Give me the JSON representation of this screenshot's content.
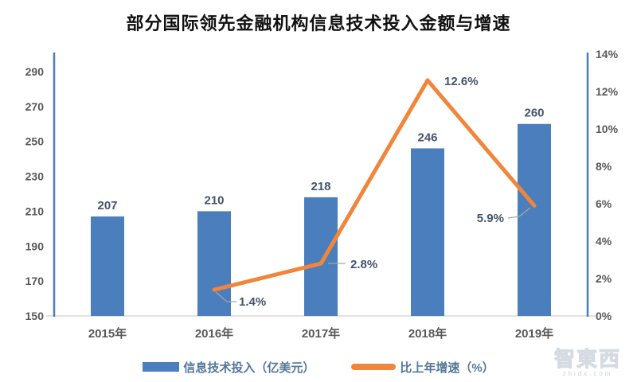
{
  "title": "部分国际领先金融机构信息技术投入金额与增速",
  "chart_data": {
    "type": "combo-bar-line",
    "categories": [
      "2015年",
      "2016年",
      "2017年",
      "2018年",
      "2019年"
    ],
    "series": [
      {
        "name": "信息技术投入（亿美元）",
        "type": "bar",
        "axis": "left",
        "color": "#4a7ebc",
        "values": [
          207,
          210,
          218,
          246,
          260
        ],
        "labels": [
          "207",
          "210",
          "218",
          "246",
          "260"
        ]
      },
      {
        "name": "比上年增速（%）",
        "type": "line",
        "axis": "right",
        "color": "#f0863b",
        "values": [
          null,
          1.4,
          2.8,
          12.6,
          5.9
        ],
        "labels": [
          null,
          "1.4%",
          "2.8%",
          "12.6%",
          "5.9%"
        ]
      }
    ],
    "left_axis": {
      "min": 150,
      "max": 300,
      "ticks": [
        "150",
        "170",
        "190",
        "210",
        "230",
        "250",
        "270",
        "290"
      ],
      "tick_values": [
        150,
        170,
        190,
        210,
        230,
        250,
        270,
        290
      ]
    },
    "right_axis": {
      "min": 0,
      "max": 14,
      "ticks": [
        "0%",
        "2%",
        "4%",
        "6%",
        "8%",
        "10%",
        "12%",
        "14%"
      ],
      "tick_values": [
        0,
        2,
        4,
        6,
        8,
        10,
        12,
        14
      ]
    },
    "grid": false,
    "legend_position": "bottom"
  },
  "legend": {
    "items": [
      {
        "label": "信息技术投入（亿美元）",
        "marker": "bar",
        "color": "#4a7ebc"
      },
      {
        "label": "比上年增速（%）",
        "marker": "line",
        "color": "#f0863b"
      }
    ]
  },
  "watermark": {
    "text": "智東西",
    "subtext": "zhidx.com"
  },
  "colors": {
    "bar": "#4a7ebc",
    "line": "#f0863b",
    "axis_line": "#4a7ebc",
    "baseline": "#d9d9d9",
    "tick_label": "#595959",
    "data_label": "#44546a",
    "leader": "#a6a6a6",
    "title": "#111111",
    "background": "#ffffff"
  }
}
